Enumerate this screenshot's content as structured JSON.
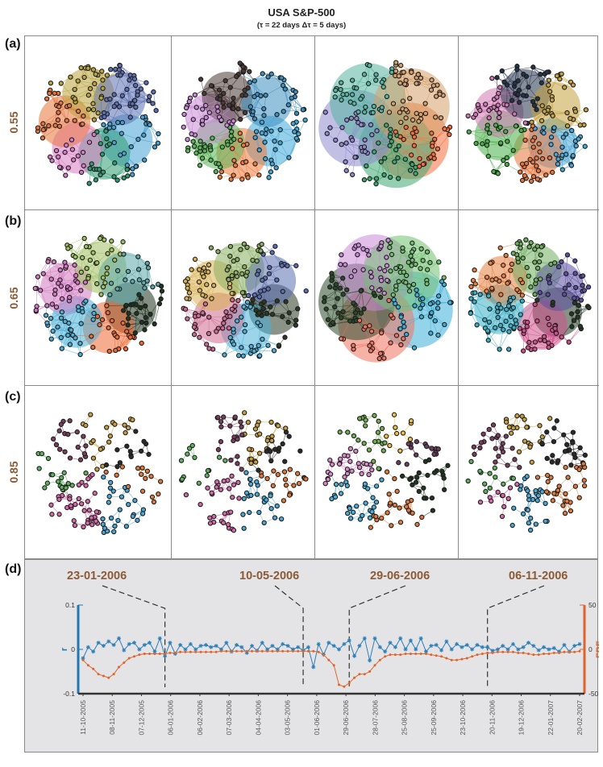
{
  "title": "USA S&P-500",
  "subtitle": "(τ = 22 days Δτ = 5 days)",
  "panel_labels": [
    "(a)",
    "(b)",
    "(c)",
    "(d)"
  ],
  "threshold_labels": [
    "0.55",
    "0.65",
    "0.85"
  ],
  "network_panels": [
    {
      "threshold": "0.55",
      "snapshots": [
        {
          "date": "23-01-2006",
          "style": "dense-hub",
          "colors": [
            "#46a3d3",
            "#2e9d6f",
            "#d97bc4",
            "#e8743b",
            "#b9a43c",
            "#5b6fb2"
          ]
        },
        {
          "date": "10-05-2006",
          "style": "clustered",
          "colors": [
            "#3fa8d8",
            "#f07a3a",
            "#56b656",
            "#c98bd6",
            "#4b3a36",
            "#3c8fc0"
          ]
        },
        {
          "date": "29-06-2006",
          "style": "giant-ball",
          "colors": [
            "#f46d3a",
            "#3aa870",
            "#8f8ad0",
            "#55b5a0",
            "#d5a06a"
          ]
        },
        {
          "date": "06-11-2006",
          "style": "clustered",
          "colors": [
            "#4aa8d6",
            "#e8743b",
            "#49b049",
            "#d278b4",
            "#24324a",
            "#c4a13c"
          ]
        }
      ]
    },
    {
      "threshold": "0.65",
      "snapshots": [
        {
          "date": "23-01-2006",
          "style": "dense-hub",
          "colors": [
            "#203520",
            "#ee6a33",
            "#4ab0d8",
            "#d278c0",
            "#a0c060",
            "#5da8a8"
          ]
        },
        {
          "date": "10-05-2006",
          "style": "clustered",
          "colors": [
            "#2b3a25",
            "#4ab0d8",
            "#d06a90",
            "#d8b050",
            "#8aaf60",
            "#5b6fb2"
          ]
        },
        {
          "date": "29-06-2006",
          "style": "giant-ball",
          "colors": [
            "#3ab0d8",
            "#f0735f",
            "#2b4a2b",
            "#c98bd6",
            "#70c070"
          ]
        },
        {
          "date": "06-11-2006",
          "style": "clustered",
          "colors": [
            "#253a25",
            "#d0508a",
            "#3ab0c8",
            "#e88040",
            "#70b060",
            "#5b4fa2"
          ]
        }
      ]
    },
    {
      "threshold": "0.85",
      "snapshots": [
        {
          "date": "23-01-2006",
          "style": "sparse",
          "colors": [
            "#e07a3a",
            "#4aa8d6",
            "#d66aa8",
            "#5fb35f",
            "#7a3f5e",
            "#c8a040",
            "#2a2a2a"
          ]
        },
        {
          "date": "10-05-2006",
          "style": "sparse",
          "colors": [
            "#e07a3a",
            "#4aa8d6",
            "#d66aa8",
            "#5fb35f",
            "#7a3f5e",
            "#c8a040",
            "#2a2a2a"
          ]
        },
        {
          "date": "29-06-2006",
          "style": "sparse",
          "colors": [
            "#203520",
            "#e07a3a",
            "#4ab0d8",
            "#d88ac8",
            "#70b050",
            "#f0c040",
            "#6a3f5e"
          ]
        },
        {
          "date": "06-11-2006",
          "style": "sparse",
          "colors": [
            "#e07a3a",
            "#4aa8d6",
            "#d66aa8",
            "#5fb35f",
            "#7a3f5e",
            "#c8a040",
            "#2a2a2a"
          ]
        }
      ]
    }
  ],
  "chart_data": {
    "type": "line",
    "xlabel": "",
    "x_tick_labels": [
      "11-10-2005",
      "08-11-2005",
      "07-12-2005",
      "06-01-2006",
      "06-02-2006",
      "07-03-2006",
      "04-04-2006",
      "03-05-2006",
      "01-06-2006",
      "29-06-2006",
      "28-07-2006",
      "25-08-2006",
      "25-09-2006",
      "23-10-2006",
      "20-11-2006",
      "19-12-2006",
      "22-01-2007",
      "20-02-2007"
    ],
    "marked_dates": [
      "23-01-2006",
      "10-05-2006",
      "29-06-2006",
      "06-11-2006"
    ],
    "marked_indices": [
      16,
      43,
      52,
      79
    ],
    "left_axis": {
      "label": "r",
      "ylim": [
        -0.1,
        0.1
      ],
      "ticks": [
        "0.1",
        "0",
        "-0.1"
      ],
      "tick_values": [
        0.1,
        0,
        -0.1
      ],
      "color": "#1f77b4"
    },
    "right_axis": {
      "label": "FRE",
      "ylim": [
        -50,
        50
      ],
      "ticks": [
        "50",
        "0",
        "-50"
      ],
      "tick_values": [
        50,
        0,
        -50
      ],
      "color": "#e0642a"
    },
    "series": [
      {
        "axis": "left",
        "color": "#2c7fb8",
        "marker": "star",
        "values": [
          -0.02,
          0.005,
          -0.005,
          0.015,
          0.008,
          0.018,
          0.01,
          0.025,
          -0.002,
          0.012,
          0.015,
          0.0,
          0.01,
          0.015,
          -0.005,
          0.025,
          -0.015,
          0.015,
          -0.01,
          0.01,
          0.0,
          0.012,
          0.0,
          0.008,
          0.01,
          0.005,
          0.008,
          0.0,
          0.015,
          -0.005,
          0.01,
          0.005,
          -0.008,
          0.008,
          -0.003,
          0.015,
          0.0,
          0.008,
          0.0,
          0.012,
          0.008,
          0.0,
          0.005,
          -0.002,
          0.005,
          -0.04,
          0.012,
          -0.012,
          0.015,
          0.008,
          0.0,
          0.012,
          0.02,
          -0.015,
          0.008,
          0.025,
          -0.025,
          0.025,
          0.005,
          -0.005,
          0.015,
          0.005,
          0.025,
          0.0,
          0.02,
          0.0,
          0.025,
          -0.005,
          0.008,
          0.01,
          -0.002,
          0.018,
          0.0,
          0.012,
          0.005,
          0.01,
          0.0,
          0.01,
          0.005,
          0.005,
          -0.003,
          0.0,
          0.008,
          0.0,
          0.012,
          0.0,
          0.005,
          0.015,
          0.008,
          -0.002,
          0.005,
          0.0,
          0.003,
          -0.005,
          0.01,
          -0.005,
          0.008,
          0.012
        ]
      },
      {
        "axis": "right",
        "color": "#e0642a",
        "marker": "dot",
        "values": [
          -12,
          -18,
          -22,
          -28,
          -30,
          -32,
          -28,
          -20,
          -15,
          -10,
          -8,
          -6,
          -5,
          -5,
          -5,
          -5,
          -5,
          -4,
          -4,
          -3,
          -3,
          -3,
          -3,
          -3,
          -3,
          -3,
          -3,
          -2,
          -2,
          -2,
          -2,
          -2,
          -2,
          -2,
          -2,
          -2,
          -2,
          -2,
          -2,
          -2,
          -2,
          -2,
          -2,
          -2,
          -2,
          -2,
          -3,
          -6,
          -12,
          -18,
          -40,
          -42,
          -38,
          -32,
          -28,
          -28,
          -25,
          -18,
          -12,
          -8,
          -6,
          -6,
          -6,
          -5,
          -5,
          -5,
          -5,
          -5,
          -6,
          -7,
          -8,
          -10,
          -12,
          -12,
          -11,
          -10,
          -8,
          -6,
          -5,
          -4,
          -4,
          -3,
          -3,
          -3,
          -3,
          -4,
          -4,
          -5,
          -6,
          -6,
          -5,
          -5,
          -4,
          -4,
          -3,
          -3,
          -3,
          -2
        ]
      }
    ]
  }
}
